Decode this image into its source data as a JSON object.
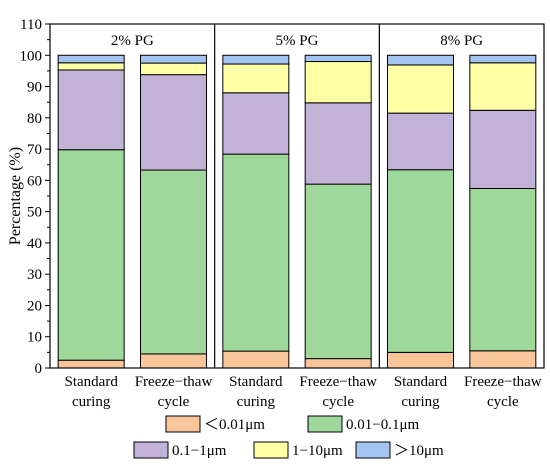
{
  "chart_data": {
    "type": "bar",
    "stacked": true,
    "ylabel": "Percentage (%)",
    "ylim": [
      0,
      110
    ],
    "yticks": [
      0,
      10,
      20,
      30,
      40,
      50,
      60,
      70,
      80,
      90,
      100,
      110
    ],
    "grid": false,
    "legend_placement": "bottom",
    "groups": [
      "2% PG",
      "5% PG",
      "8% PG"
    ],
    "categories": [
      "Standard curing",
      "Freeze−thaw cycle",
      "Standard curing",
      "Freeze−thaw cycle",
      "Standard curing",
      "Freeze−thaw cycle"
    ],
    "category_lines": [
      [
        "Standard",
        "curing"
      ],
      [
        "Freeze−thaw",
        "cycle"
      ],
      [
        "Standard",
        "curing"
      ],
      [
        "Freeze−thaw",
        "cycle"
      ],
      [
        "Standard",
        "curing"
      ],
      [
        "Freeze−thaw",
        "cycle"
      ]
    ],
    "series": [
      {
        "name": "<0.01μm",
        "legend_text": "＜0.01μm",
        "color": "#f9c59a",
        "values": [
          2.5,
          4.5,
          5.4,
          3.0,
          5.0,
          5.5
        ]
      },
      {
        "name": "0.01−0.1μm",
        "legend_text": "0.01−0.1μm",
        "color": "#9fd89b",
        "values": [
          67.3,
          58.8,
          63.0,
          55.8,
          58.4,
          51.9
        ]
      },
      {
        "name": "0.1−1μm",
        "legend_text": "0.1−1μm",
        "color": "#c3b2d8",
        "values": [
          25.5,
          30.5,
          19.6,
          26.0,
          18.1,
          25.0
        ]
      },
      {
        "name": "1−10μm",
        "legend_text": "1−10μm",
        "color": "#ffffa6",
        "values": [
          2.3,
          3.7,
          9.2,
          13.2,
          15.4,
          15.2
        ]
      },
      {
        "name": ">10μm",
        "legend_text": "＞10μm",
        "color": "#a4c4f1",
        "values": [
          2.4,
          2.5,
          2.8,
          2.0,
          3.1,
          2.4
        ]
      }
    ]
  }
}
